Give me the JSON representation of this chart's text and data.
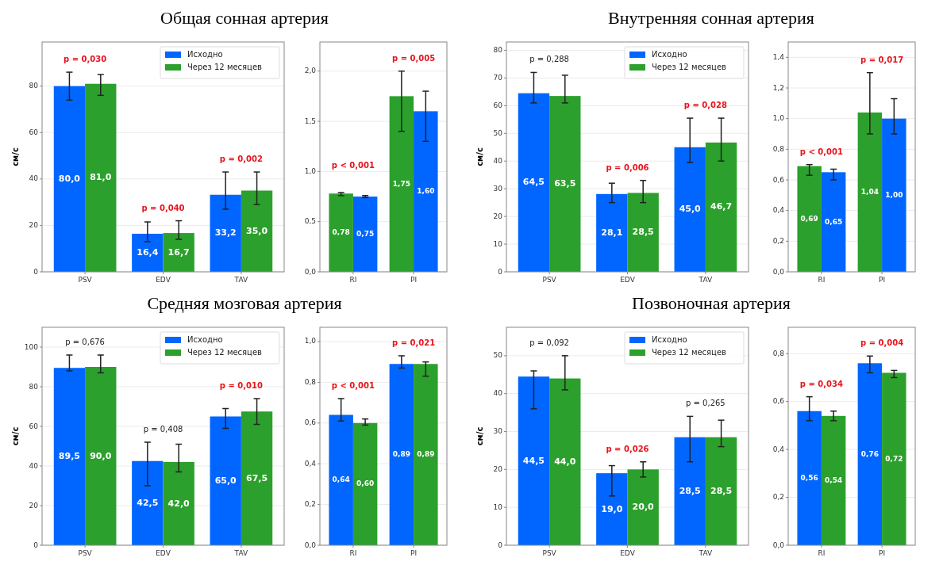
{
  "chart_data": [
    {
      "type": "bar",
      "title": "Общая сонная артерия",
      "ylabel": "см/с",
      "categories": [
        "PSV",
        "EDV",
        "TAV"
      ],
      "ylim": [
        0,
        99
      ],
      "yticks": [
        0,
        20,
        40,
        60,
        80
      ],
      "grid": "y",
      "legend": "top right",
      "series": [
        {
          "name": "Исходно",
          "color": "#0066ff",
          "values": [
            80.0,
            16.4,
            33.2
          ],
          "errors": [
            [
              74,
              86
            ],
            [
              13,
              21.5
            ],
            [
              27,
              43
            ]
          ],
          "value_labels": [
            "80,0",
            "16,4",
            "33,2"
          ]
        },
        {
          "name": "Через 12 месяцев",
          "color": "#2ca02c",
          "values": [
            81.0,
            16.7,
            35.0
          ],
          "errors": [
            [
              76,
              85
            ],
            [
              14,
              22
            ],
            [
              29,
              43
            ]
          ],
          "value_labels": [
            "81,0",
            "16,7",
            "35,0"
          ]
        }
      ],
      "annotations": [
        "p = 0,030",
        "p = 0,040",
        "p = 0,002"
      ]
    },
    {
      "type": "bar",
      "categories": [
        "RI",
        "PI"
      ],
      "ylim": [
        0,
        2.29
      ],
      "yticks": [
        {
          "value": 0,
          "label": "0,0"
        },
        {
          "value": 0.5,
          "label": "0,5"
        },
        {
          "value": 1,
          "label": "1,0"
        },
        {
          "value": 1.5,
          "label": "1,5"
        },
        {
          "value": 2,
          "label": "2,0"
        }
      ],
      "grid": "y",
      "series": [
        {
          "color": "#2ca02c",
          "values": [
            0.78,
            1.75
          ],
          "errors": [
            [
              0.76,
              0.79
            ],
            [
              1.4,
              2.0
            ]
          ],
          "value_labels": [
            "0,78",
            "1,75"
          ]
        },
        {
          "color": "#0066ff",
          "values": [
            0.75,
            1.6
          ],
          "errors": [
            [
              0.74,
              0.76
            ],
            [
              1.3,
              1.8
            ]
          ],
          "value_labels": [
            "0,75",
            "1,60"
          ]
        }
      ],
      "annotations": [
        "p < 0,001",
        "p = 0,005"
      ]
    },
    {
      "type": "bar",
      "title": "Внутренняя сонная артерия",
      "ylabel": "см/с",
      "categories": [
        "PSV",
        "EDV",
        "TAV"
      ],
      "ylim": [
        0,
        83
      ],
      "yticks": [
        0,
        10,
        20,
        30,
        40,
        50,
        60,
        70,
        80
      ],
      "grid": "y",
      "legend": "top right",
      "series": [
        {
          "name": "Исходно",
          "color": "#0066ff",
          "values": [
            64.5,
            28.1,
            45.0
          ],
          "errors": [
            [
              61,
              72
            ],
            [
              25,
              32
            ],
            [
              39.5,
              55.5
            ]
          ],
          "value_labels": [
            "64,5",
            "28,1",
            "45,0"
          ]
        },
        {
          "name": "Через 12 месяцев",
          "color": "#2ca02c",
          "values": [
            63.5,
            28.5,
            46.7
          ],
          "errors": [
            [
              61,
              71
            ],
            [
              25,
              33
            ],
            [
              40,
              55.5
            ]
          ],
          "value_labels": [
            "63,5",
            "28,5",
            "46,7"
          ]
        }
      ],
      "annotations": [
        "p = 0,288",
        "p = 0,006",
        "p = 0,028"
      ]
    },
    {
      "type": "bar",
      "categories": [
        "RI",
        "PI"
      ],
      "ylim": [
        0,
        1.5
      ],
      "yticks": [
        {
          "value": 0,
          "label": "0,0"
        },
        {
          "value": 0.2,
          "label": "0,2"
        },
        {
          "value": 0.4,
          "label": "0,4"
        },
        {
          "value": 0.6,
          "label": "0,6"
        },
        {
          "value": 0.8,
          "label": "0,8"
        },
        {
          "value": 1,
          "label": "1,0"
        },
        {
          "value": 1.2,
          "label": "1,2"
        },
        {
          "value": 1.4,
          "label": "1,4"
        }
      ],
      "grid": "y",
      "series": [
        {
          "color": "#2ca02c",
          "values": [
            0.69,
            1.04
          ],
          "errors": [
            [
              0.63,
              0.7
            ],
            [
              0.9,
              1.3
            ]
          ],
          "value_labels": [
            "0,69",
            "1,04"
          ]
        },
        {
          "color": "#0066ff",
          "values": [
            0.65,
            1.0
          ],
          "errors": [
            [
              0.6,
              0.67
            ],
            [
              0.9,
              1.13
            ]
          ],
          "value_labels": [
            "0,65",
            "1,00"
          ]
        }
      ],
      "annotations": [
        "p < 0,001",
        "p = 0,017"
      ]
    },
    {
      "type": "bar",
      "title": "Средняя мозговая артерия",
      "ylabel": "см/с",
      "categories": [
        "PSV",
        "EDV",
        "TAV"
      ],
      "ylim": [
        0,
        110
      ],
      "yticks": [
        0,
        20,
        40,
        60,
        80,
        100
      ],
      "grid": "y",
      "legend": "top right",
      "series": [
        {
          "name": "Исходно",
          "color": "#0066ff",
          "values": [
            89.5,
            42.5,
            65.0
          ],
          "errors": [
            [
              88,
              96
            ],
            [
              30,
              52
            ],
            [
              59,
              69
            ]
          ],
          "value_labels": [
            "89,5",
            "42,5",
            "65,0"
          ]
        },
        {
          "name": "Через 12 месяцев",
          "color": "#2ca02c",
          "values": [
            90.0,
            42.0,
            67.5
          ],
          "errors": [
            [
              87,
              96
            ],
            [
              37,
              51
            ],
            [
              61,
              74
            ]
          ],
          "value_labels": [
            "90,0",
            "42,0",
            "67,5"
          ]
        }
      ],
      "annotations": [
        "p = 0,676",
        "p = 0,408",
        "p = 0,010"
      ]
    },
    {
      "type": "bar",
      "categories": [
        "RI",
        "PI"
      ],
      "ylim": [
        0,
        1.07
      ],
      "yticks": [
        {
          "value": 0,
          "label": "0,0"
        },
        {
          "value": 0.2,
          "label": "0,2"
        },
        {
          "value": 0.4,
          "label": "0,4"
        },
        {
          "value": 0.6,
          "label": "0,6"
        },
        {
          "value": 0.8,
          "label": "0,8"
        },
        {
          "value": 1,
          "label": "1,0"
        }
      ],
      "grid": "y",
      "series": [
        {
          "color": "#0066ff",
          "values": [
            0.64,
            0.89
          ],
          "errors": [
            [
              0.61,
              0.72
            ],
            [
              0.87,
              0.93
            ]
          ],
          "value_labels": [
            "0,64",
            "0,89"
          ]
        },
        {
          "color": "#2ca02c",
          "values": [
            0.6,
            0.89
          ],
          "errors": [
            [
              0.59,
              0.62
            ],
            [
              0.83,
              0.9
            ]
          ],
          "value_labels": [
            "0,60",
            "0,89"
          ]
        }
      ],
      "annotations": [
        "p < 0,001",
        "p = 0,021"
      ]
    },
    {
      "type": "bar",
      "title": "Позвоночная артерия",
      "ylabel": "см/с",
      "categories": [
        "PSV",
        "EDV",
        "TAV"
      ],
      "ylim": [
        0,
        57.5
      ],
      "yticks": [
        0,
        10,
        20,
        30,
        40,
        50
      ],
      "grid": "y",
      "legend": "top right",
      "series": [
        {
          "name": "Исходно",
          "color": "#0066ff",
          "values": [
            44.5,
            19.0,
            28.5
          ],
          "errors": [
            [
              36,
              46
            ],
            [
              13,
              21
            ],
            [
              22,
              34
            ]
          ],
          "value_labels": [
            "44,5",
            "19,0",
            "28,5"
          ]
        },
        {
          "name": "Через 12 месяцев",
          "color": "#2ca02c",
          "values": [
            44.0,
            20.0,
            28.5
          ],
          "errors": [
            [
              41,
              50
            ],
            [
              18,
              22
            ],
            [
              26,
              33
            ]
          ],
          "value_labels": [
            "44,0",
            "20,0",
            "28,5"
          ]
        }
      ],
      "annotations": [
        "p = 0,092",
        "p = 0,026",
        "p = 0,265"
      ]
    },
    {
      "type": "bar",
      "categories": [
        "RI",
        "PI"
      ],
      "ylim": [
        0,
        0.91
      ],
      "yticks": [
        {
          "value": 0,
          "label": "0,0"
        },
        {
          "value": 0.2,
          "label": "0,2"
        },
        {
          "value": 0.4,
          "label": "0,4"
        },
        {
          "value": 0.6,
          "label": "0,6"
        },
        {
          "value": 0.8,
          "label": "0,8"
        }
      ],
      "grid": "y",
      "series": [
        {
          "color": "#0066ff",
          "values": [
            0.56,
            0.76
          ],
          "errors": [
            [
              0.52,
              0.62
            ],
            [
              0.72,
              0.79
            ]
          ],
          "value_labels": [
            "0,56",
            "0,76"
          ]
        },
        {
          "color": "#2ca02c",
          "values": [
            0.54,
            0.72
          ],
          "errors": [
            [
              0.52,
              0.56
            ],
            [
              0.7,
              0.73
            ]
          ],
          "value_labels": [
            "0,54",
            "0,72"
          ]
        }
      ],
      "annotations": [
        "p = 0,034",
        "p = 0,004"
      ]
    }
  ]
}
